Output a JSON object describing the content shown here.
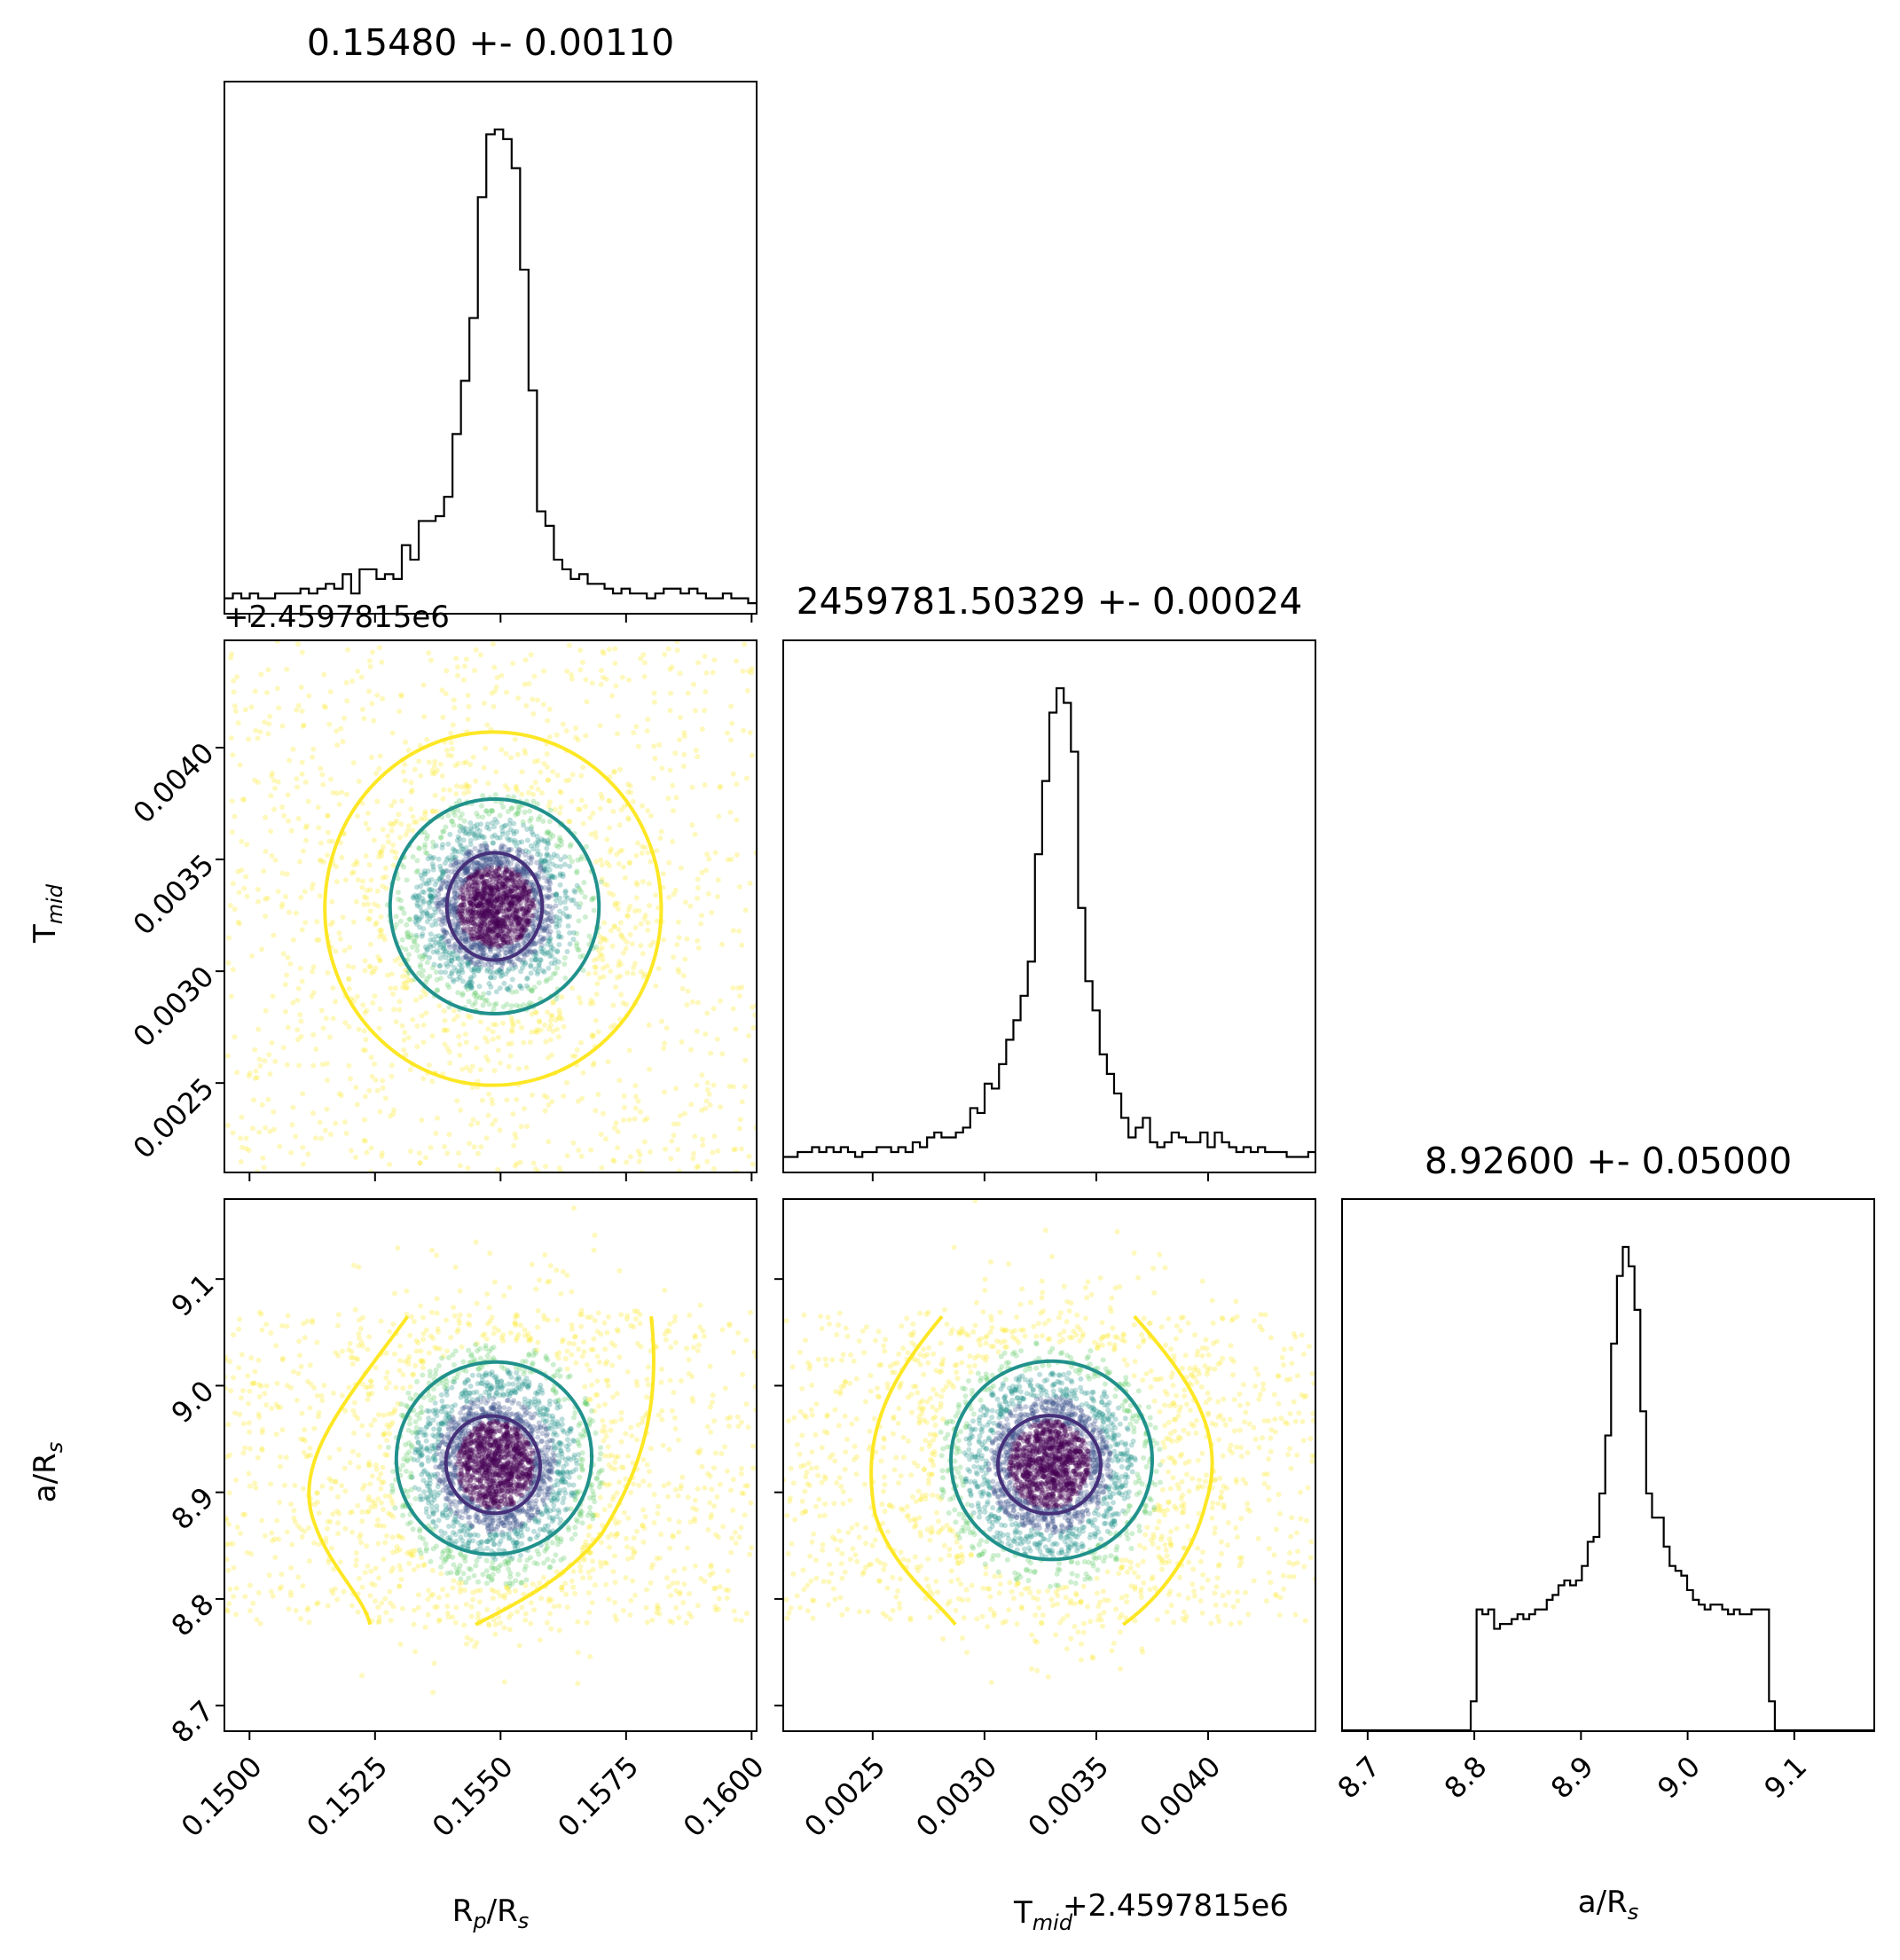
{
  "chart_data": {
    "type": "corner",
    "titles": {
      "rp": "0.15480 +- 0.00110",
      "tmid": "2459781.50329 +- 0.00024",
      "ars": "8.92600 +- 0.05000"
    },
    "offset_label": "+2.4597815e6",
    "labels": {
      "rp": "R_p/R_s",
      "tmid": "T_mid",
      "ars": "a/R_s",
      "tmid_x_label": "T_mid",
      "tmid_x_offset": "+2.4597815e6"
    },
    "axes": {
      "rp": {
        "range": [
          0.1495,
          0.1601
        ],
        "ticks": [
          0.15,
          0.1525,
          0.155,
          0.1575,
          0.16
        ],
        "tick_labels": [
          "0.1500",
          "0.1525",
          "0.1550",
          "0.1575",
          "0.1600"
        ]
      },
      "tmid": {
        "range": [
          0.0021,
          0.00448
        ],
        "ticks": [
          0.0025,
          0.003,
          0.0035,
          0.004
        ],
        "tick_labels": [
          "0.0025",
          "0.0030",
          "0.0035",
          "0.0040"
        ]
      },
      "ars": {
        "range": [
          8.676,
          9.175
        ],
        "ticks": [
          8.7,
          8.8,
          8.9,
          9.0,
          9.1
        ],
        "tick_labels": [
          "8.7",
          "8.8",
          "8.9",
          "9.0",
          "9.1"
        ]
      }
    },
    "histograms": {
      "rp": {
        "bin_edges_range": [
          0.1495,
          0.1601
        ],
        "counts": [
          3,
          4,
          3,
          4,
          3,
          3,
          4,
          4,
          4,
          5,
          4,
          5,
          6,
          5,
          8,
          4,
          9,
          9,
          7,
          8,
          7,
          14,
          11,
          19,
          19,
          20,
          24,
          37,
          48,
          61,
          86,
          99,
          100,
          98,
          92,
          71,
          46,
          21,
          18,
          11,
          9,
          7,
          8,
          6,
          6,
          5,
          4,
          5,
          4,
          4,
          3,
          4,
          5,
          5,
          4,
          5,
          4,
          3,
          3,
          4,
          3,
          3,
          2
        ]
      },
      "tmid": {
        "bin_edges_range": [
          0.0021,
          0.00448
        ],
        "counts": [
          3,
          3,
          4,
          4,
          5,
          4,
          5,
          4,
          5,
          4,
          3,
          4,
          4,
          5,
          5,
          4,
          5,
          4,
          6,
          5,
          7,
          8,
          7,
          7,
          8,
          9,
          13,
          12,
          18,
          17,
          22,
          27,
          31,
          36,
          43,
          65,
          80,
          94,
          99,
          96,
          86,
          54,
          39,
          33,
          24,
          20,
          16,
          11,
          7,
          9,
          11,
          6,
          5,
          6,
          8,
          7,
          6,
          6,
          8,
          5,
          8,
          6,
          5,
          4,
          5,
          4,
          5,
          4,
          4,
          4,
          3,
          3,
          3,
          4
        ]
      },
      "ars": {
        "bin_edges_range": [
          8.676,
          9.175
        ],
        "counts": [
          0,
          0,
          0,
          0,
          0,
          0,
          0,
          0,
          0,
          0,
          0,
          0,
          0,
          0,
          0,
          0,
          0,
          0,
          0,
          0,
          0,
          0,
          6,
          25,
          24,
          25,
          21,
          22,
          22,
          23,
          24,
          23,
          24,
          25,
          25,
          27,
          28,
          30,
          31,
          30,
          31,
          34,
          39,
          40,
          49,
          61,
          80,
          94,
          100,
          96,
          87,
          66,
          49,
          44,
          44,
          38,
          34,
          33,
          32,
          29,
          27,
          26,
          25,
          26,
          26,
          25,
          24,
          25,
          24,
          24,
          25,
          25,
          25,
          6,
          0,
          0,
          0,
          0,
          0,
          0,
          0,
          0,
          0,
          0,
          0,
          0,
          0,
          0,
          0,
          0,
          0
        ]
      }
    },
    "samples": {
      "rp_mean": 0.1549,
      "rp_sigma_core": 0.0006,
      "rp_uniform": [
        0.1495,
        0.1601
      ],
      "tmid_mean": 0.00329,
      "tmid_sigma_core": 0.00014,
      "tmid_uniform": [
        0.0021,
        0.00448
      ],
      "ars_mean": 8.926,
      "ars_sigma_core": 0.032,
      "ars_uniform": [
        8.776,
        9.07
      ],
      "point_colors": [
        "#440154",
        "#3b528b",
        "#21918c",
        "#5ec962",
        "#fde725"
      ]
    },
    "contours": {
      "levels": [
        "inner",
        "middle",
        "outer"
      ],
      "colors": [
        "#46307a",
        "#21918c",
        "#fde725"
      ],
      "tmid_vs_rp": {
        "inner": {
          "cx": 0.15488,
          "cy": 0.00329,
          "rx": 0.00095,
          "ry": 0.00024
        },
        "middle": {
          "cx": 0.15488,
          "cy": 0.00329,
          "rx": 0.00208,
          "ry": 0.00048
        },
        "outer": {
          "cx": 0.15485,
          "cy": 0.00328,
          "rx": 0.00335,
          "ry": 0.00079
        }
      },
      "ars_vs_rp": {
        "inner": {
          "cx": 0.15485,
          "cy": 8.926,
          "rx": 0.00093,
          "ry": 0.046,
          "rot": -25
        },
        "middle": {
          "cx": 0.15487,
          "cy": 8.932,
          "rx": 0.00195,
          "ry": 0.09,
          "rot": -20
        }
      },
      "ars_vs_tmid": {
        "inner": {
          "cx": 0.00329,
          "cy": 8.926,
          "rx": 0.00023,
          "ry": 0.046
        },
        "middle": {
          "cx": 0.0033,
          "cy": 8.93,
          "rx": 0.00045,
          "ry": 0.093
        }
      }
    }
  }
}
